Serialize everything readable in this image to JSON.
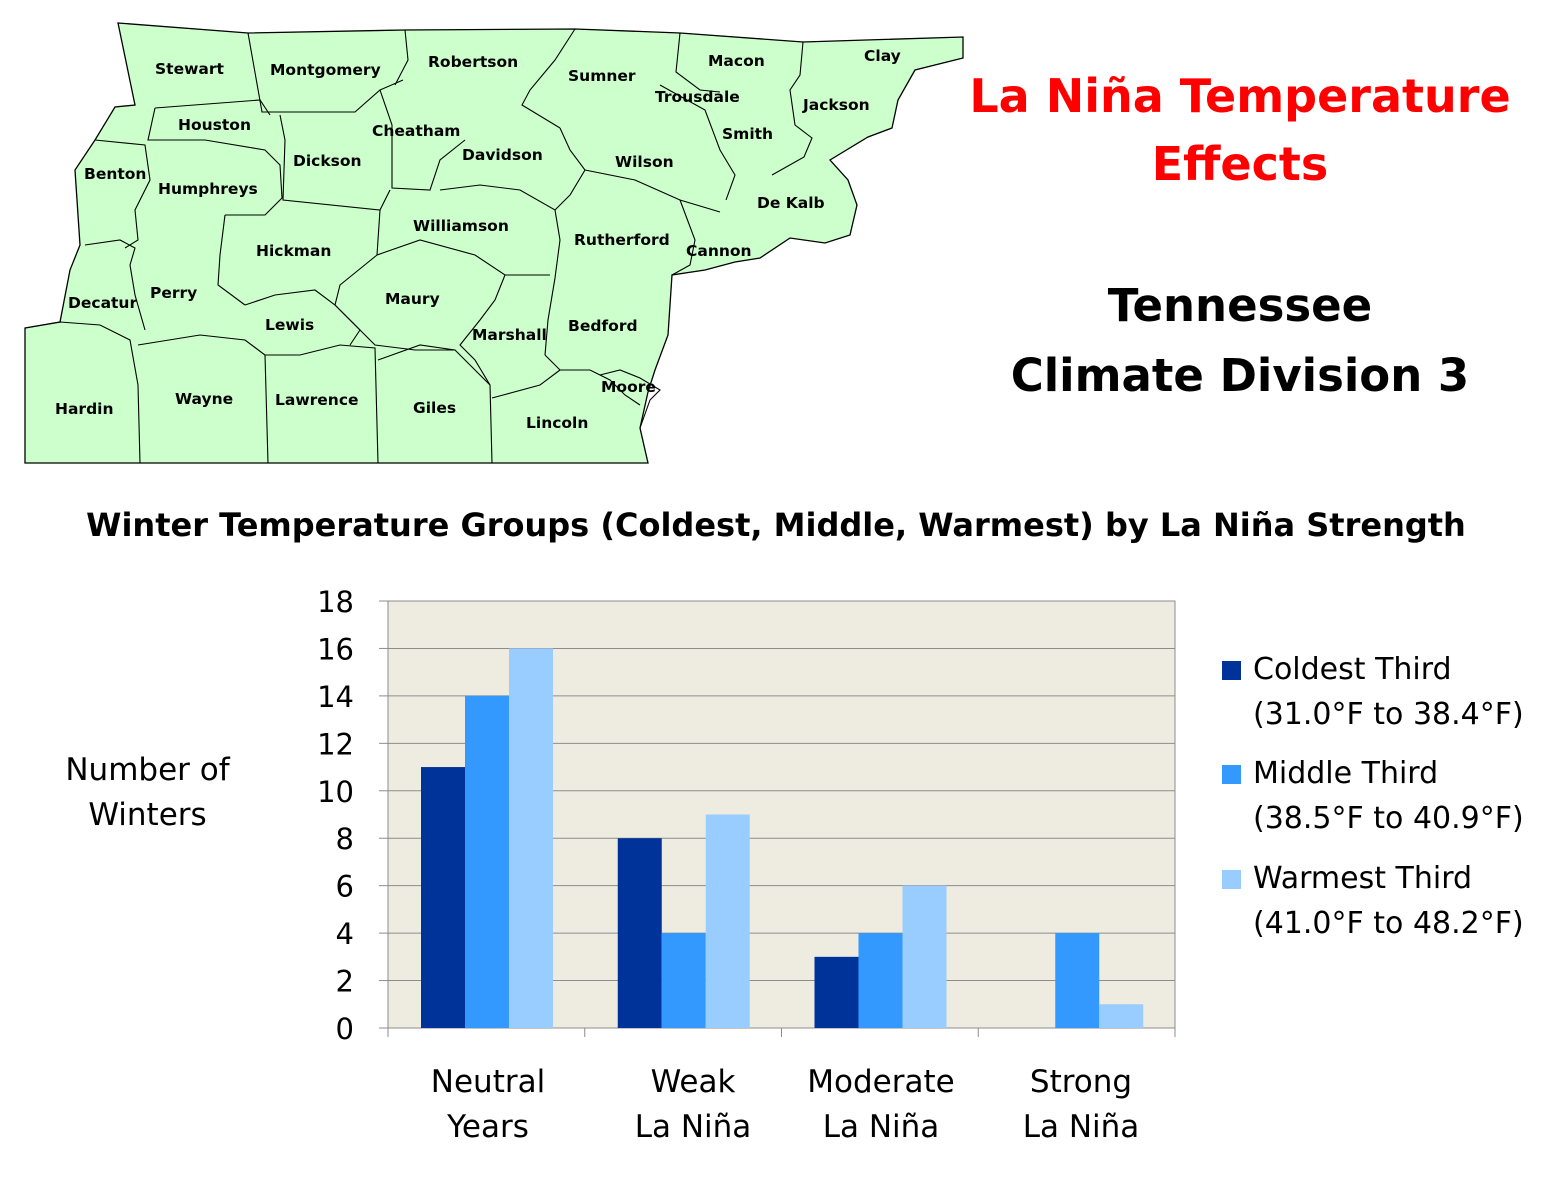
{
  "map": {
    "counties": [
      "Stewart",
      "Montgomery",
      "Robertson",
      "Sumner",
      "Macon",
      "Clay",
      "Trousdale",
      "Jackson",
      "Houston",
      "Cheatham",
      "Davidson",
      "Smith",
      "Benton",
      "Humphreys",
      "Dickson",
      "Wilson",
      "De Kalb",
      "Williamson",
      "Rutherford",
      "Cannon",
      "Hickman",
      "Decatur",
      "Perry",
      "Maury",
      "Lewis",
      "Marshall",
      "Bedford",
      "Moore",
      "Hardin",
      "Wayne",
      "Lawrence",
      "Giles",
      "Lincoln"
    ],
    "fill_color": "#ccffcc"
  },
  "header": {
    "title_line1": "La Niña Temperature",
    "title_line2": "Effects",
    "subtitle_line1": "Tennessee",
    "subtitle_line2": "Climate Division 3"
  },
  "chart_data": {
    "type": "bar",
    "title": "Winter Temperature Groups (Coldest, Middle, Warmest) by La Niña Strength",
    "ylabel_line1": "Number of",
    "ylabel_line2": "Winters",
    "xlabel": "",
    "categories": [
      {
        "line1": "Neutral",
        "line2": "Years"
      },
      {
        "line1": "Weak",
        "line2": "La Niña"
      },
      {
        "line1": "Moderate",
        "line2": "La Niña"
      },
      {
        "line1": "Strong",
        "line2": "La Niña"
      }
    ],
    "series": [
      {
        "name": "Coldest Third",
        "range": "(31.0°F to 38.4°F)",
        "color": "#003399",
        "values": [
          11,
          8,
          3,
          0
        ]
      },
      {
        "name": "Middle Third",
        "range": "(38.5°F to 40.9°F)",
        "color": "#3399ff",
        "values": [
          14,
          4,
          4,
          4
        ]
      },
      {
        "name": "Warmest Third",
        "range": "(41.0°F to 48.2°F)",
        "color": "#99ccff",
        "values": [
          16,
          9,
          6,
          1
        ]
      }
    ],
    "ylim": [
      0,
      18
    ],
    "yticks": [
      "0",
      "2",
      "4",
      "6",
      "8",
      "10",
      "12",
      "14",
      "16",
      "18"
    ],
    "grid": true,
    "plot_background": "#eeece1",
    "legend_position": "right"
  }
}
